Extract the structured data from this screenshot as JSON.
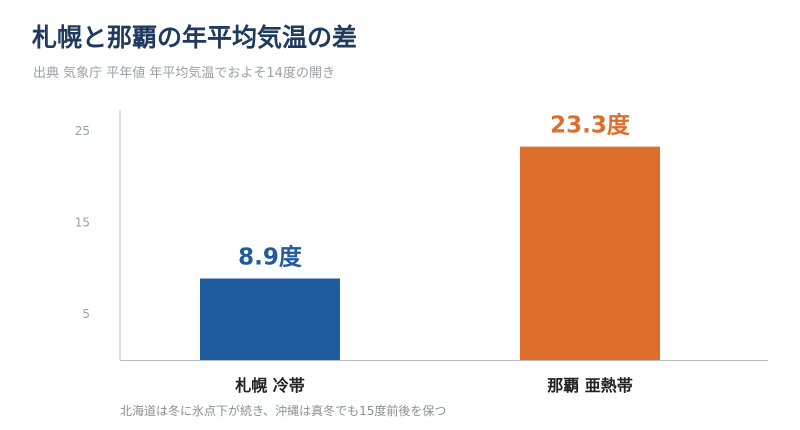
{
  "title": "札幌と那覇の年平均気温の差",
  "subtitle": "出典 気象庁 平年値 年平均気温でおよそ14度の開き",
  "footnote": "北海道は冬に氷点下が続き、沖縄は真冬でも15度前後を保つ",
  "chart_data": {
    "type": "bar",
    "categories": [
      "札幌 冷帯",
      "那覇 亜熱帯"
    ],
    "values": [
      8.9,
      23.3
    ],
    "data_labels": [
      "8.9度",
      "23.3度"
    ],
    "colors": [
      "#1f5c9e",
      "#dd6e2c"
    ],
    "yticks": [
      5,
      15,
      25
    ],
    "ylim": [
      0,
      27.3
    ],
    "grid": false,
    "legend": "none"
  }
}
